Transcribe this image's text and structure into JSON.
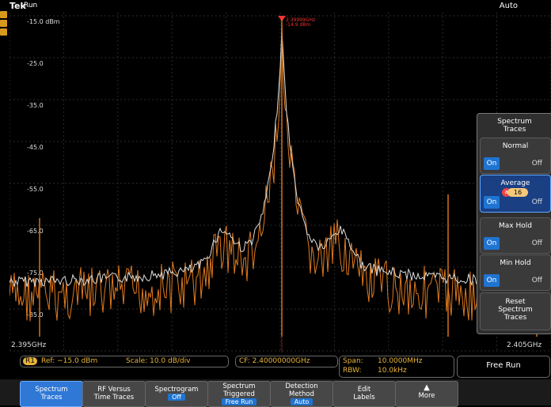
{
  "topbar": {
    "brand": "Tek",
    "status": "Run",
    "mode": "Auto"
  },
  "axis": {
    "y_labels": [
      "-15.0 dBm",
      "-25.0",
      "-35.0",
      "-45.0",
      "-55.0",
      "-65.0",
      "-75.0",
      "-85.0"
    ],
    "start_freq": "2.395GHz",
    "stop_freq": "2.405GHz"
  },
  "marker": {
    "line1": "2.39999GHz",
    "line2": "-14.9 dBm"
  },
  "side_panel": {
    "title_line1": "Spectrum",
    "title_line2": "Traces",
    "normal_label": "Normal",
    "average_label": "Average",
    "average_count": "16",
    "maxhold_label": "Max Hold",
    "minhold_label": "Min Hold",
    "on_label": "On",
    "off_label": "Off",
    "reset_line1": "Reset",
    "reset_line2": "Spectrum",
    "reset_line3": "Traces"
  },
  "status": {
    "ref_icon": "R1",
    "ref": "Ref: −15.0 dBm",
    "scale": "Scale: 10.0 dB/div",
    "cf": "CF: 2.40000000GHz",
    "span_label": "Span:",
    "span_value": "10.0000MHz",
    "rbw_label": "RBW:",
    "rbw_value": "10.0kHz",
    "trigger": "Free Run"
  },
  "bottom_buttons": {
    "b1_l1": "Spectrum",
    "b1_l2": "Traces",
    "b2_l1": "RF Versus",
    "b2_l2": "Time Traces",
    "b3_l1": "Spectrogram",
    "b3_val": "Off",
    "b4_l1": "Spectrum",
    "b4_l2": "Triggered",
    "b4_val": "Free Run",
    "b5_l1": "Detection",
    "b5_l2": "Method",
    "b5_val": "Auto",
    "b6_l1": "Edit",
    "b6_l2": "Labels",
    "b7_l1": "More"
  },
  "colors": {
    "trace_orange": "#e07a1f",
    "trace_white": "#dcdcdc",
    "accent": "#1f74d1",
    "label_yellow": "#e8b43a"
  }
}
